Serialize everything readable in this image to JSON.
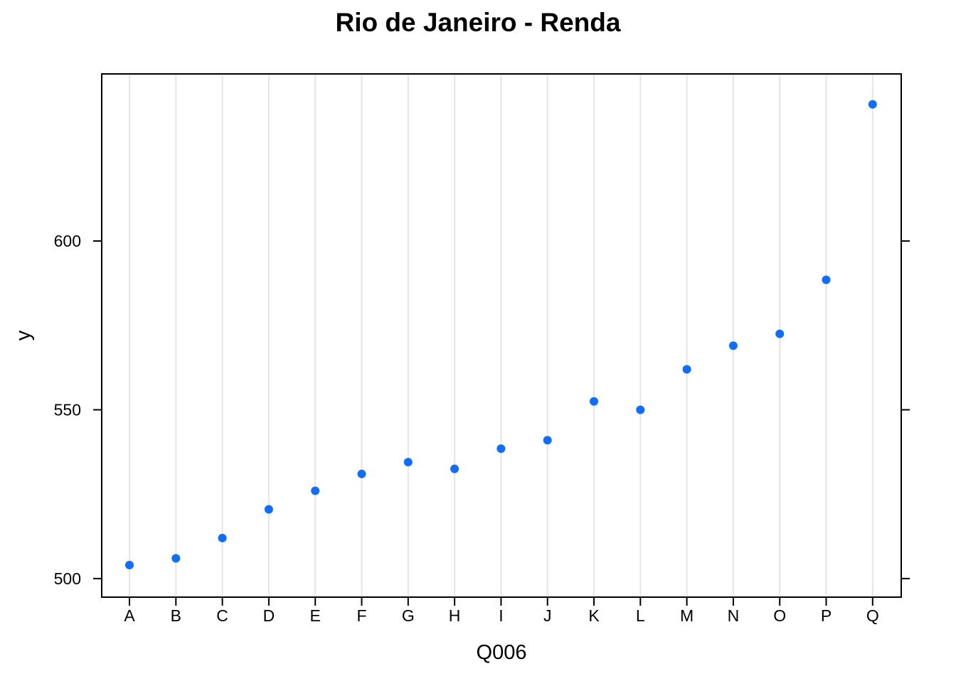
{
  "chart_data": {
    "type": "scatter",
    "title": "Rio de Janeiro - Renda",
    "xlabel": "Q006",
    "ylabel": "y",
    "categories": [
      "A",
      "B",
      "C",
      "D",
      "E",
      "F",
      "G",
      "H",
      "I",
      "J",
      "K",
      "L",
      "M",
      "N",
      "O",
      "P",
      "Q"
    ],
    "values": [
      504,
      506,
      512,
      520.5,
      526,
      531,
      534.5,
      532.5,
      538.5,
      541,
      552.5,
      550,
      562,
      569,
      572.5,
      588.5,
      640.5
    ],
    "ylim": [
      494.5,
      649.5
    ],
    "yticks": [
      500,
      550,
      600
    ],
    "vertical_grid": true,
    "point_color": "#0F6DFF",
    "grid_color": "#E5E5E5"
  }
}
